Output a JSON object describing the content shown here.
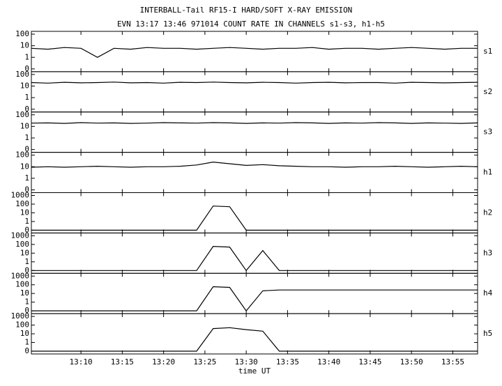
{
  "chart_data": [
    {
      "type": "line",
      "title": "INTERBALL-Tail RF15-I HARD/SOFT X-RAY EMISSION",
      "subtitle": "EVN 13:17 13:46 971014  COUNT RATE IN CHANNELS s1-s3, h1-h5",
      "label": "s1",
      "yscale": "log",
      "color": "#000000",
      "xlim": [
        "13:04",
        "13:58"
      ],
      "ylim": [
        0,
        100
      ],
      "yticks": [
        0,
        1,
        10,
        100
      ],
      "x": [
        "13:04",
        "13:06",
        "13:08",
        "13:10",
        "13:12",
        "13:14",
        "13:16",
        "13:18",
        "13:20",
        "13:22",
        "13:24",
        "13:26",
        "13:28",
        "13:30",
        "13:32",
        "13:34",
        "13:36",
        "13:38",
        "13:40",
        "13:42",
        "13:44",
        "13:46",
        "13:48",
        "13:50",
        "13:52",
        "13:54",
        "13:56",
        "13:58"
      ],
      "values": [
        6,
        5,
        7,
        6,
        1,
        6,
        5,
        7,
        6,
        6,
        5,
        6,
        7,
        6,
        5,
        6,
        6,
        7,
        5,
        6,
        6,
        5,
        6,
        7,
        6,
        5,
        6,
        6
      ]
    },
    {
      "type": "line",
      "label": "s2",
      "yscale": "log",
      "color": "#000000",
      "xlim": [
        "13:04",
        "13:58"
      ],
      "ylim": [
        0,
        100
      ],
      "yticks": [
        0,
        1,
        10,
        100
      ],
      "x": [
        "13:04",
        "13:06",
        "13:08",
        "13:10",
        "13:12",
        "13:14",
        "13:16",
        "13:18",
        "13:20",
        "13:22",
        "13:24",
        "13:26",
        "13:28",
        "13:30",
        "13:32",
        "13:34",
        "13:36",
        "13:38",
        "13:40",
        "13:42",
        "13:44",
        "13:46",
        "13:48",
        "13:50",
        "13:52",
        "13:54",
        "13:56",
        "13:58"
      ],
      "values": [
        20,
        18,
        21,
        19,
        20,
        22,
        19,
        20,
        18,
        21,
        20,
        22,
        20,
        19,
        21,
        20,
        18,
        20,
        21,
        19,
        20,
        20,
        18,
        21,
        20,
        19,
        20,
        21
      ]
    },
    {
      "type": "line",
      "label": "s3",
      "yscale": "log",
      "color": "#000000",
      "xlim": [
        "13:04",
        "13:58"
      ],
      "ylim": [
        0,
        100
      ],
      "yticks": [
        0,
        1,
        10,
        100
      ],
      "x": [
        "13:04",
        "13:06",
        "13:08",
        "13:10",
        "13:12",
        "13:14",
        "13:16",
        "13:18",
        "13:20",
        "13:22",
        "13:24",
        "13:26",
        "13:28",
        "13:30",
        "13:32",
        "13:34",
        "13:36",
        "13:38",
        "13:40",
        "13:42",
        "13:44",
        "13:46",
        "13:48",
        "13:50",
        "13:52",
        "13:54",
        "13:56",
        "13:58"
      ],
      "values": [
        19,
        20,
        18,
        21,
        19,
        20,
        18,
        19,
        21,
        20,
        19,
        21,
        20,
        18,
        20,
        19,
        21,
        20,
        18,
        20,
        19,
        21,
        20,
        18,
        20,
        19,
        18,
        20
      ]
    },
    {
      "type": "line",
      "label": "h1",
      "yscale": "log",
      "color": "#000000",
      "xlim": [
        "13:04",
        "13:58"
      ],
      "ylim": [
        0,
        100
      ],
      "yticks": [
        0,
        1,
        10,
        100
      ],
      "x": [
        "13:04",
        "13:06",
        "13:08",
        "13:10",
        "13:12",
        "13:14",
        "13:16",
        "13:18",
        "13:20",
        "13:22",
        "13:24",
        "13:26",
        "13:28",
        "13:30",
        "13:32",
        "13:34",
        "13:36",
        "13:38",
        "13:40",
        "13:42",
        "13:44",
        "13:46",
        "13:48",
        "13:50",
        "13:52",
        "13:54",
        "13:56",
        "13:58"
      ],
      "values": [
        9,
        10,
        9,
        10,
        11,
        10,
        9,
        10,
        10,
        11,
        14,
        25,
        18,
        13,
        15,
        12,
        11,
        10,
        10,
        9,
        10,
        10,
        11,
        10,
        9,
        10,
        11,
        10
      ]
    },
    {
      "type": "line",
      "label": "h2",
      "yscale": "log",
      "color": "#000000",
      "xlim": [
        "13:04",
        "13:58"
      ],
      "ylim": [
        0,
        1000
      ],
      "yticks": [
        0,
        1,
        10,
        100,
        1000
      ],
      "x": [
        "13:04",
        "13:06",
        "13:08",
        "13:10",
        "13:12",
        "13:14",
        "13:16",
        "13:18",
        "13:20",
        "13:22",
        "13:24",
        "13:26",
        "13:28",
        "13:30",
        "13:32",
        "13:34",
        "13:36",
        "13:38",
        "13:40",
        "13:42",
        "13:44",
        "13:46",
        "13:48",
        "13:50",
        "13:52",
        "13:54",
        "13:56",
        "13:58"
      ],
      "values": [
        0,
        0,
        0,
        0,
        0,
        0,
        0,
        0,
        0,
        0,
        0,
        60,
        50,
        0,
        0,
        0,
        0,
        0,
        0,
        0,
        0,
        0,
        0,
        0,
        0,
        0,
        0,
        0
      ]
    },
    {
      "type": "line",
      "label": "h3",
      "yscale": "log",
      "color": "#000000",
      "xlim": [
        "13:04",
        "13:58"
      ],
      "ylim": [
        0,
        1000
      ],
      "yticks": [
        0,
        1,
        10,
        100,
        1000
      ],
      "x": [
        "13:04",
        "13:06",
        "13:08",
        "13:10",
        "13:12",
        "13:14",
        "13:16",
        "13:18",
        "13:20",
        "13:22",
        "13:24",
        "13:26",
        "13:28",
        "13:30",
        "13:32",
        "13:34",
        "13:36",
        "13:38",
        "13:40",
        "13:42",
        "13:44",
        "13:46",
        "13:48",
        "13:50",
        "13:52",
        "13:54",
        "13:56",
        "13:58"
      ],
      "values": [
        0,
        0,
        0,
        0,
        0,
        0,
        0,
        0,
        0,
        0,
        0,
        60,
        50,
        0,
        20,
        0,
        0,
        0,
        0,
        0,
        0,
        0,
        0,
        0,
        0,
        0,
        0,
        0
      ]
    },
    {
      "type": "line",
      "label": "h4",
      "yscale": "log",
      "color": "#000000",
      "xlim": [
        "13:04",
        "13:58"
      ],
      "ylim": [
        0,
        1000
      ],
      "yticks": [
        0,
        1,
        10,
        100,
        1000
      ],
      "x": [
        "13:04",
        "13:06",
        "13:08",
        "13:10",
        "13:12",
        "13:14",
        "13:16",
        "13:18",
        "13:20",
        "13:22",
        "13:24",
        "13:26",
        "13:28",
        "13:30",
        "13:32",
        "13:34",
        "13:36",
        "13:38",
        "13:40",
        "13:42",
        "13:44",
        "13:46",
        "13:48",
        "13:50",
        "13:52",
        "13:54",
        "13:56",
        "13:58"
      ],
      "values": [
        0,
        0,
        0,
        0,
        0,
        0,
        0,
        0,
        0,
        0,
        0,
        60,
        50,
        0,
        20,
        25,
        25,
        25,
        25,
        25,
        25,
        25,
        25,
        25,
        25,
        25,
        25,
        25
      ]
    },
    {
      "type": "line",
      "label": "h5",
      "yscale": "log",
      "color": "#000000",
      "xlim": [
        "13:04",
        "13:58"
      ],
      "ylim": [
        0,
        1000
      ],
      "yticks": [
        0,
        1,
        10,
        100,
        1000
      ],
      "xlabel": "time UT",
      "xticks": [
        "13:10",
        "13:15",
        "13:20",
        "13:25",
        "13:30",
        "13:35",
        "13:40",
        "13:45",
        "13:50",
        "13:55"
      ],
      "x": [
        "13:04",
        "13:06",
        "13:08",
        "13:10",
        "13:12",
        "13:14",
        "13:16",
        "13:18",
        "13:20",
        "13:22",
        "13:24",
        "13:26",
        "13:28",
        "13:30",
        "13:32",
        "13:34",
        "13:36",
        "13:38",
        "13:40",
        "13:42",
        "13:44",
        "13:46",
        "13:48",
        "13:50",
        "13:52",
        "13:54",
        "13:56",
        "13:58"
      ],
      "values": [
        0,
        0,
        0,
        0,
        0,
        0,
        0,
        0,
        0,
        0,
        0,
        40,
        50,
        30,
        20,
        0,
        0,
        0,
        0,
        0,
        0,
        0,
        0,
        0,
        0,
        0,
        0,
        0
      ]
    }
  ]
}
